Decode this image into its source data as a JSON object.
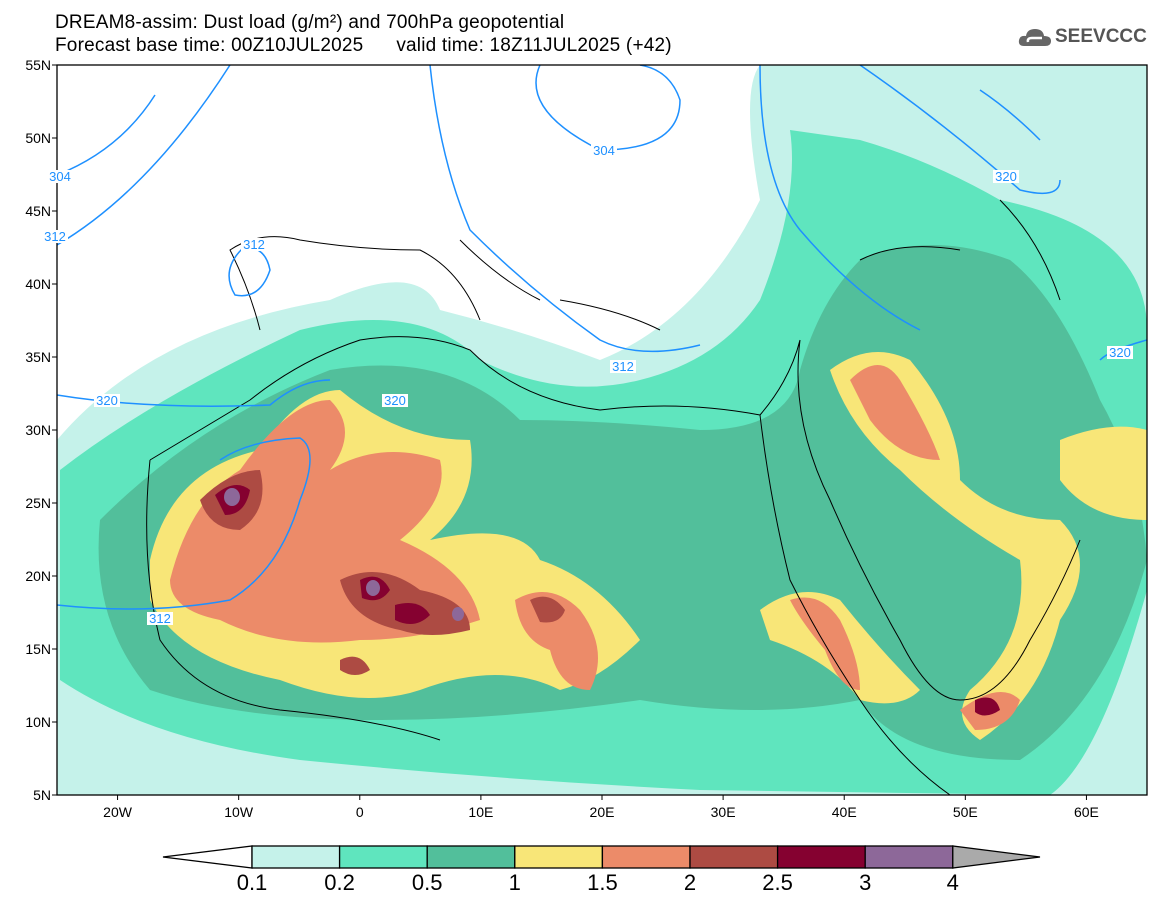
{
  "header": {
    "title": "DREAM8-assim: Dust load (g/m²) and 700hPa geopotential",
    "forecast_base": "Forecast base time: 00Z10JUL2025",
    "valid_time": "valid time: 18Z11JUL2025 (+42)"
  },
  "logo": {
    "text": "SEEVCCC",
    "icon": "cloud-icon"
  },
  "map": {
    "lon_range": [
      -25,
      65
    ],
    "lat_range": [
      5,
      55
    ],
    "lat_labels": [
      "55N",
      "50N",
      "45N",
      "40N",
      "35N",
      "30N",
      "25N",
      "20N",
      "15N",
      "10N",
      "5N"
    ],
    "lon_labels": [
      "20W",
      "10W",
      "0",
      "10E",
      "20E",
      "30E",
      "40E",
      "50E",
      "60E"
    ],
    "contour_labels": [
      "304",
      "312",
      "312",
      "304",
      "320",
      "312",
      "320",
      "320",
      "312",
      "320"
    ]
  },
  "colorbar": {
    "labels": [
      "0.1",
      "0.2",
      "0.5",
      "1",
      "1.5",
      "2",
      "2.5",
      "3",
      "4"
    ],
    "colors": [
      "#c5f2ea",
      "#5fe5be",
      "#52bf9b",
      "#f8e678",
      "#ec8b69",
      "#ad4b43",
      "#850130",
      "#8d6899"
    ],
    "under_color": "#ffffff",
    "over_color": "#aaaaaa"
  },
  "colors": {
    "contour": "#1e90ff"
  }
}
